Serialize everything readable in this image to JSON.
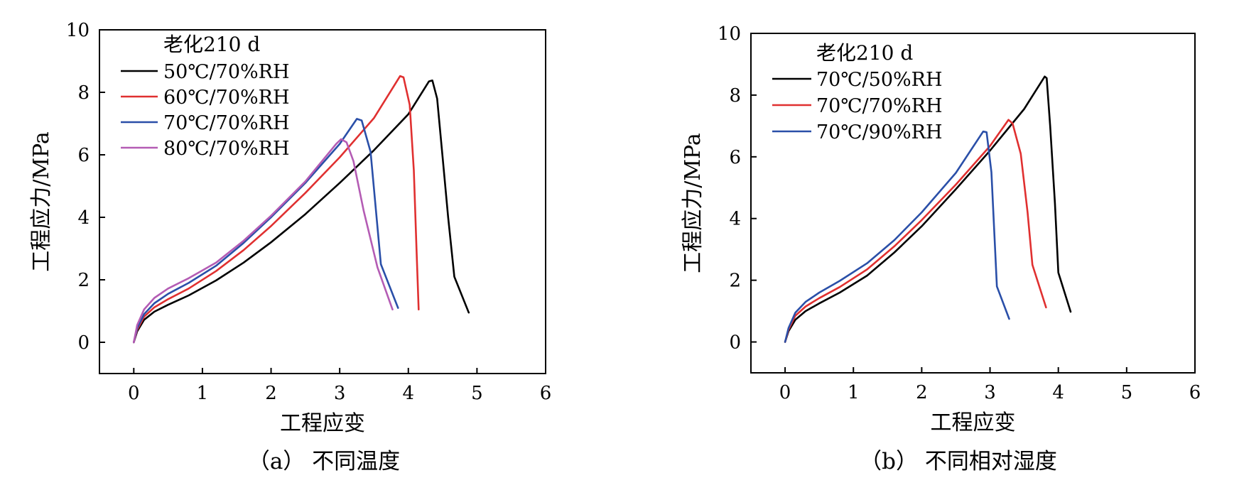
{
  "chart_data": [
    {
      "type": "line",
      "caption": "（a） 不同温度",
      "xlabel": "工程应变",
      "ylabel": "工程应力/MPa",
      "xlim": [
        -0.5,
        6
      ],
      "ylim": [
        -1,
        10
      ],
      "xticks": [
        0,
        1,
        2,
        3,
        4,
        5,
        6
      ],
      "yticks": [
        0,
        2,
        4,
        6,
        8,
        10
      ],
      "legend_title": "老化210 d",
      "legend_position": "top-left",
      "series": [
        {
          "name": "50℃/70%RH",
          "color": "#000000",
          "x": [
            0,
            0.05,
            0.15,
            0.3,
            0.5,
            0.8,
            1.2,
            1.6,
            2.0,
            2.5,
            3.0,
            3.5,
            4.0,
            4.3,
            4.35,
            4.42,
            4.5,
            4.58,
            4.67,
            4.88
          ],
          "y": [
            0,
            0.35,
            0.72,
            0.98,
            1.2,
            1.5,
            1.98,
            2.55,
            3.2,
            4.1,
            5.1,
            6.15,
            7.3,
            8.35,
            8.38,
            7.8,
            5.9,
            4.0,
            2.1,
            0.95
          ]
        },
        {
          "name": "60℃/70%RH",
          "color": "#e03030",
          "x": [
            0,
            0.05,
            0.15,
            0.3,
            0.5,
            0.8,
            1.2,
            1.6,
            2.0,
            2.5,
            3.0,
            3.5,
            3.88,
            3.93,
            4.02,
            4.08,
            4.12,
            4.15
          ],
          "y": [
            0,
            0.4,
            0.82,
            1.12,
            1.38,
            1.72,
            2.28,
            2.95,
            3.72,
            4.78,
            5.92,
            7.18,
            8.52,
            8.48,
            7.6,
            5.5,
            2.9,
            1.05
          ]
        },
        {
          "name": "70℃/70%RH",
          "color": "#2a4fa8",
          "x": [
            0,
            0.05,
            0.15,
            0.3,
            0.5,
            0.8,
            1.2,
            1.6,
            2.0,
            2.5,
            3.0,
            3.25,
            3.32,
            3.45,
            3.6,
            3.85
          ],
          "y": [
            0,
            0.45,
            0.9,
            1.25,
            1.55,
            1.9,
            2.45,
            3.18,
            4.0,
            5.1,
            6.35,
            7.15,
            7.1,
            6.1,
            2.5,
            1.1
          ]
        },
        {
          "name": "80℃/70%RH",
          "color": "#b45cb4",
          "x": [
            0,
            0.05,
            0.15,
            0.3,
            0.5,
            0.8,
            1.2,
            1.6,
            2.0,
            2.5,
            2.95,
            3.02,
            3.1,
            3.2,
            3.35,
            3.55,
            3.77
          ],
          "y": [
            0,
            0.55,
            1.05,
            1.42,
            1.72,
            2.05,
            2.55,
            3.25,
            4.05,
            5.15,
            6.35,
            6.5,
            6.4,
            5.8,
            4.2,
            2.4,
            1.05
          ]
        }
      ]
    },
    {
      "type": "line",
      "caption": "（b） 不同相对湿度",
      "xlabel": "工程应变",
      "ylabel": "工程应力/MPa",
      "xlim": [
        -0.5,
        6
      ],
      "ylim": [
        -1,
        10
      ],
      "xticks": [
        0,
        1,
        2,
        3,
        4,
        5,
        6
      ],
      "yticks": [
        0,
        2,
        4,
        6,
        8,
        10
      ],
      "legend_title": "老化210 d",
      "legend_position": "top-left",
      "series": [
        {
          "name": "70℃/50%RH",
          "color": "#000000",
          "x": [
            0,
            0.05,
            0.15,
            0.3,
            0.5,
            0.8,
            1.2,
            1.6,
            2.0,
            2.5,
            3.0,
            3.5,
            3.8,
            3.83,
            3.88,
            3.95,
            4.0,
            4.18
          ],
          "y": [
            0,
            0.35,
            0.72,
            1.0,
            1.25,
            1.6,
            2.15,
            2.9,
            3.75,
            4.95,
            6.2,
            7.55,
            8.6,
            8.55,
            7.0,
            4.5,
            2.25,
            0.98
          ]
        },
        {
          "name": "70℃/70%RH",
          "color": "#e03030",
          "x": [
            0,
            0.05,
            0.15,
            0.3,
            0.5,
            0.8,
            1.2,
            1.6,
            2.0,
            2.5,
            3.0,
            3.27,
            3.33,
            3.45,
            3.55,
            3.62,
            3.82
          ],
          "y": [
            0,
            0.4,
            0.85,
            1.15,
            1.42,
            1.78,
            2.35,
            3.1,
            3.95,
            5.1,
            6.35,
            7.2,
            7.08,
            6.1,
            4.2,
            2.5,
            1.12
          ]
        },
        {
          "name": "70℃/90%RH",
          "color": "#2a4fa8",
          "x": [
            0,
            0.05,
            0.15,
            0.3,
            0.5,
            0.8,
            1.2,
            1.6,
            2.0,
            2.5,
            2.9,
            2.95,
            3.02,
            3.1,
            3.28
          ],
          "y": [
            0,
            0.45,
            0.95,
            1.3,
            1.6,
            1.98,
            2.55,
            3.3,
            4.2,
            5.48,
            6.82,
            6.8,
            5.5,
            1.8,
            0.75
          ]
        }
      ]
    }
  ]
}
